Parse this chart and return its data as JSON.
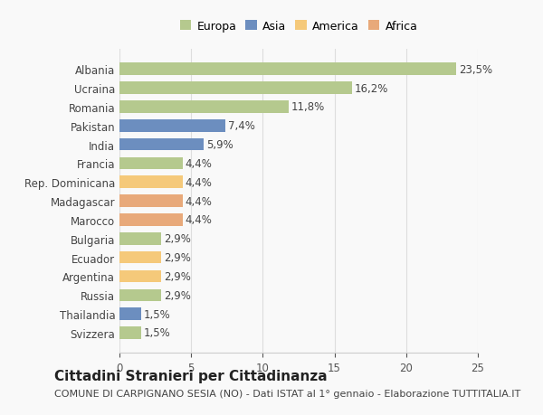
{
  "categories": [
    "Svizzera",
    "Thailandia",
    "Russia",
    "Argentina",
    "Ecuador",
    "Bulgaria",
    "Marocco",
    "Madagascar",
    "Rep. Dominicana",
    "Francia",
    "India",
    "Pakistan",
    "Romania",
    "Ucraina",
    "Albania"
  ],
  "values": [
    1.5,
    1.5,
    2.9,
    2.9,
    2.9,
    2.9,
    4.4,
    4.4,
    4.4,
    4.4,
    5.9,
    7.4,
    11.8,
    16.2,
    23.5
  ],
  "labels": [
    "1,5%",
    "1,5%",
    "2,9%",
    "2,9%",
    "2,9%",
    "2,9%",
    "4,4%",
    "4,4%",
    "4,4%",
    "4,4%",
    "5,9%",
    "7,4%",
    "11,8%",
    "16,2%",
    "23,5%"
  ],
  "colors": [
    "#b5c98e",
    "#6c8ebf",
    "#b5c98e",
    "#f5c97a",
    "#f5c97a",
    "#b5c98e",
    "#e8a97a",
    "#e8a97a",
    "#f5c97a",
    "#b5c98e",
    "#6c8ebf",
    "#6c8ebf",
    "#b5c98e",
    "#b5c98e",
    "#b5c98e"
  ],
  "legend_labels": [
    "Europa",
    "Asia",
    "America",
    "Africa"
  ],
  "legend_colors": [
    "#b5c98e",
    "#6c8ebf",
    "#f5c97a",
    "#e8a97a"
  ],
  "xlim": [
    0,
    25
  ],
  "xticks": [
    0,
    5,
    10,
    15,
    20,
    25
  ],
  "title": "Cittadini Stranieri per Cittadinanza",
  "subtitle": "COMUNE DI CARPIGNANO SESIA (NO) - Dati ISTAT al 1° gennaio - Elaborazione TUTTITALIA.IT",
  "background_color": "#f9f9f9",
  "bar_height": 0.65,
  "grid_color": "#dddddd",
  "title_fontsize": 11,
  "subtitle_fontsize": 8,
  "label_fontsize": 8.5,
  "tick_fontsize": 8.5
}
